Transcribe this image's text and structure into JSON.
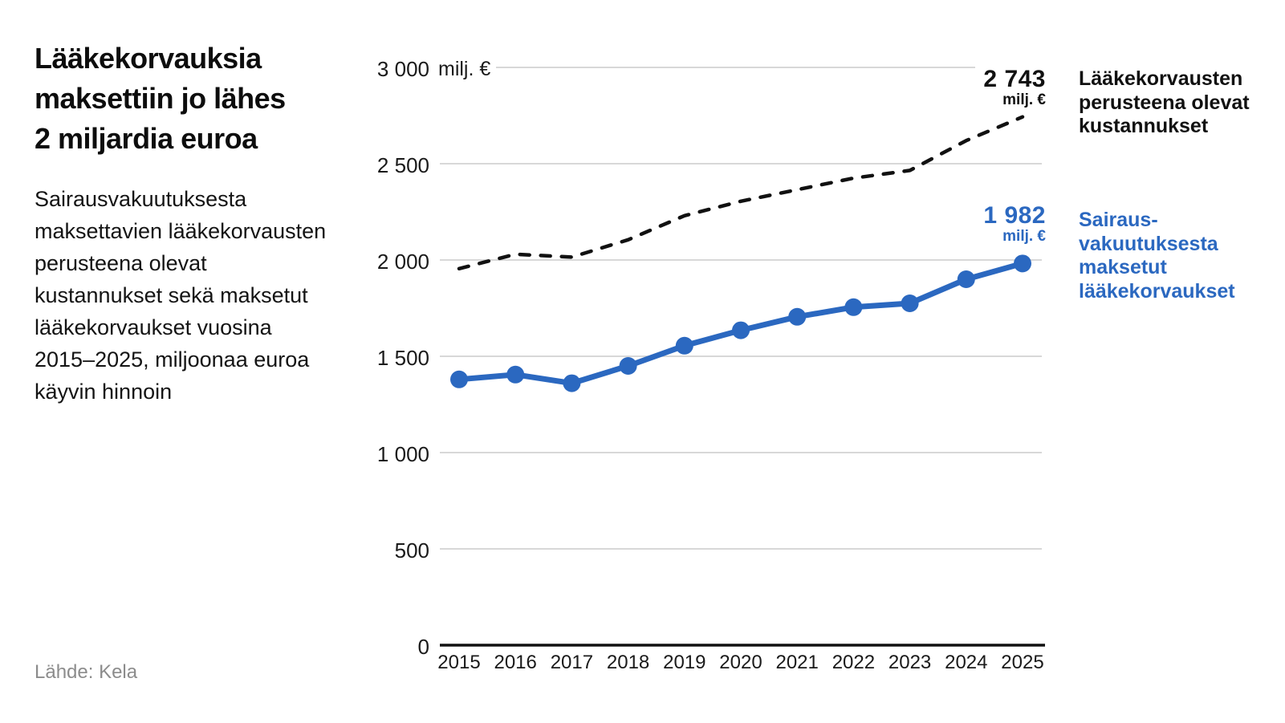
{
  "accent_blue": "#2b68c0",
  "grid_color": "#cccccc",
  "axis_color": "#111111",
  "chart_data": {
    "type": "line",
    "title": "Lääkekorvauksia maksettiin jo lähes 2 miljardia euroa",
    "title_lines": [
      "Lääkekorvauksia",
      "maksettiin jo lähes",
      "2 miljardia euroa"
    ],
    "subtitle": "Sairausvakuutuksesta maksettavien lääkekorvausten perusteena olevat kustannukset sekä maksetut lääkekorvaukset vuosina 2015–2025, miljoonaa euroa käyvin hinnoin",
    "subtitle_lines": [
      "Sairausvakuutuksesta",
      "maksettavien lääkekorvausten",
      "perusteena olevat",
      "kustannukset sekä maksetut",
      "lääkekorvaukset vuosina",
      "2015–2025, miljoonaa euroa",
      "käyvin hinnoin"
    ],
    "source": "Lähde: Kela",
    "unit": "milj. €",
    "grid": "horizontal",
    "legend_position": "right",
    "ylim": [
      0,
      3000
    ],
    "x": [
      2015,
      2016,
      2017,
      2018,
      2019,
      2020,
      2021,
      2022,
      2023,
      2024,
      2025
    ],
    "x_tick_labels": [
      "2015",
      "2016",
      "2017",
      "2018",
      "2019",
      "2020",
      "2021",
      "2022",
      "2023",
      "2024",
      "2025"
    ],
    "y_ticks": [
      {
        "label": "0",
        "value": 0
      },
      {
        "label": "500",
        "value": 500
      },
      {
        "label": "1 000",
        "value": 1000
      },
      {
        "label": "1 500",
        "value": 1500
      },
      {
        "label": "2 000",
        "value": 2000
      },
      {
        "label": "2 500",
        "value": 2500
      },
      {
        "label": "3 000",
        "value": 3000
      }
    ],
    "series": [
      {
        "name": "Lääkekorvausten perusteena olevat kustannukset",
        "name_lines": [
          "Lääkekorvausten",
          "perusteena olevat",
          "kustannukset"
        ],
        "style": "dashed",
        "color": "#111111",
        "values": [
          1955,
          2030,
          2015,
          2105,
          2230,
          2305,
          2365,
          2425,
          2465,
          2620,
          2743
        ],
        "end_label": {
          "value_text": "2 743",
          "unit": "milj. €"
        }
      },
      {
        "name": "Sairausvakuutuksesta maksetut lääkekorvaukset",
        "name_lines": [
          "Sairaus-",
          "vakuutuksesta",
          "maksetut",
          "lääkekorvaukset"
        ],
        "style": "solid-dots",
        "color": "#2b68c0",
        "values": [
          1380,
          1405,
          1360,
          1450,
          1555,
          1635,
          1705,
          1755,
          1775,
          1900,
          1982
        ],
        "end_label": {
          "value_text": "1 982",
          "unit": "milj. €"
        }
      }
    ]
  }
}
